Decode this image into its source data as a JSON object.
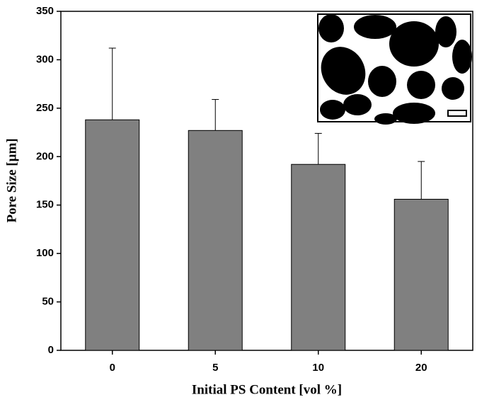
{
  "chart_data": {
    "type": "bar",
    "xlabel": "Initial PS Content [vol %]",
    "ylabel": "Pore Size [µm]",
    "categories": [
      "0",
      "5",
      "10",
      "20"
    ],
    "values": [
      238,
      227,
      192,
      156
    ],
    "errors": [
      74,
      32,
      32,
      39
    ],
    "color": "#808080",
    "ylim": [
      0,
      350
    ],
    "yticks": [
      0,
      50,
      100,
      150,
      200,
      250,
      300,
      350
    ]
  }
}
